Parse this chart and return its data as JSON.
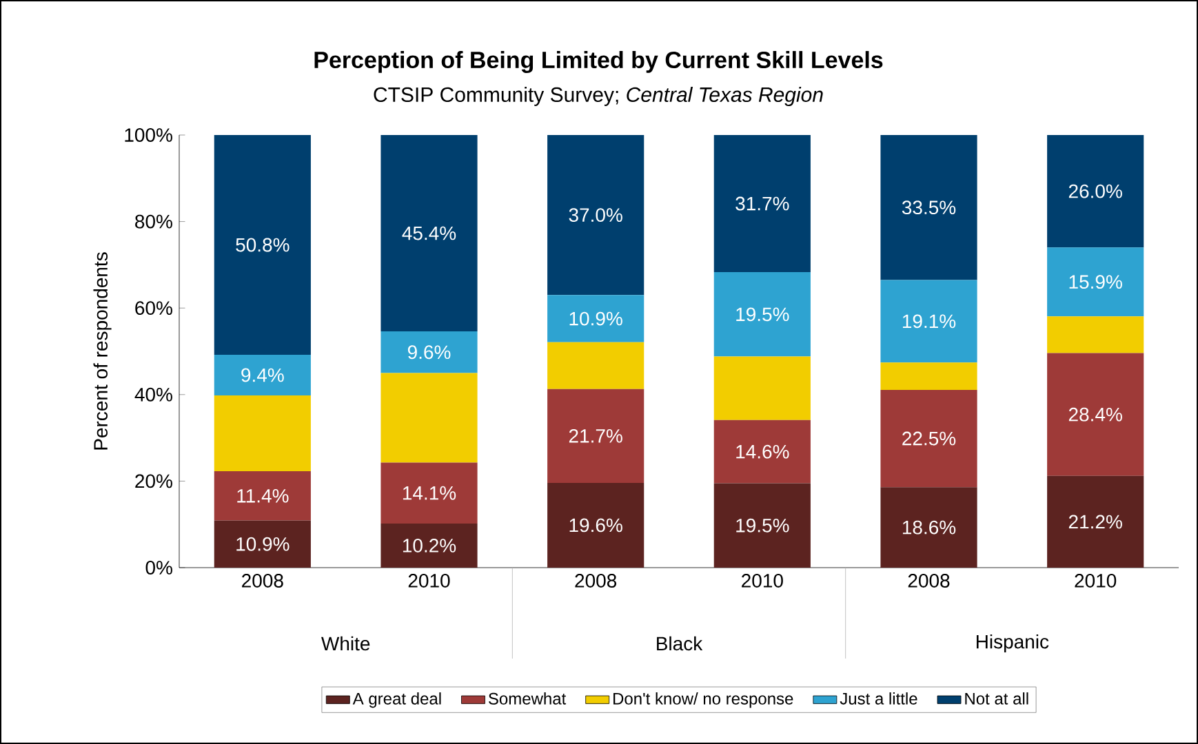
{
  "chart_data": {
    "type": "bar",
    "stacked": true,
    "title": "Perception of Being Limited by Current Skill Levels",
    "subtitle": "CTSIP Community Survey; *Central Texas Region*",
    "ylabel": "Percent of respondents",
    "categories": [
      "2008",
      "2010",
      "2008",
      "2010",
      "2008",
      "2010"
    ],
    "annotations": [
      "White",
      "Black",
      "Hispanic"
    ],
    "series": [
      {
        "name": "A great deal",
        "color": "#5c2320",
        "values": [
          10.9,
          10.2,
          19.6,
          19.5,
          18.6,
          21.2
        ],
        "value_labels": [
          "10.9%",
          "10.2%",
          "19.6%",
          "19.5%",
          "18.6%",
          "21.2%"
        ]
      },
      {
        "name": "Somewhat",
        "color": "#9e3a38",
        "values": [
          11.4,
          14.1,
          21.7,
          14.6,
          22.5,
          28.4
        ],
        "value_labels": [
          "11.4%",
          "14.1%",
          "21.7%",
          "14.6%",
          "22.5%",
          "28.4%"
        ]
      },
      {
        "name": "Don't know/ no response",
        "color": "#f2cd00",
        "values": [
          17.5,
          20.7,
          10.8,
          14.7,
          6.3,
          8.5
        ],
        "value_labels": [
          null,
          null,
          null,
          null,
          null,
          null
        ]
      },
      {
        "name": "Just a little",
        "color": "#2ea3d1",
        "values": [
          9.4,
          9.6,
          10.9,
          19.5,
          19.1,
          15.9
        ],
        "value_labels": [
          "9.4%",
          "9.6%",
          "10.9%",
          "19.5%",
          "19.1%",
          "15.9%"
        ]
      },
      {
        "name": "Not at all",
        "color": "#003f6e",
        "values": [
          50.8,
          45.4,
          37.0,
          31.7,
          33.5,
          26.0
        ],
        "value_labels": [
          "50.8%",
          "45.4%",
          "37.0%",
          "31.7%",
          "33.5%",
          "26.0%"
        ]
      }
    ],
    "ylim": [
      0,
      100
    ],
    "yticks": [
      {
        "value": 0,
        "label": "0%"
      },
      {
        "value": 20,
        "label": "20%"
      },
      {
        "value": 40,
        "label": "40%"
      },
      {
        "value": 60,
        "label": "60%"
      },
      {
        "value": 80,
        "label": "80%"
      },
      {
        "value": 100,
        "label": "100%"
      }
    ],
    "grid": false,
    "legend": "bottom"
  }
}
